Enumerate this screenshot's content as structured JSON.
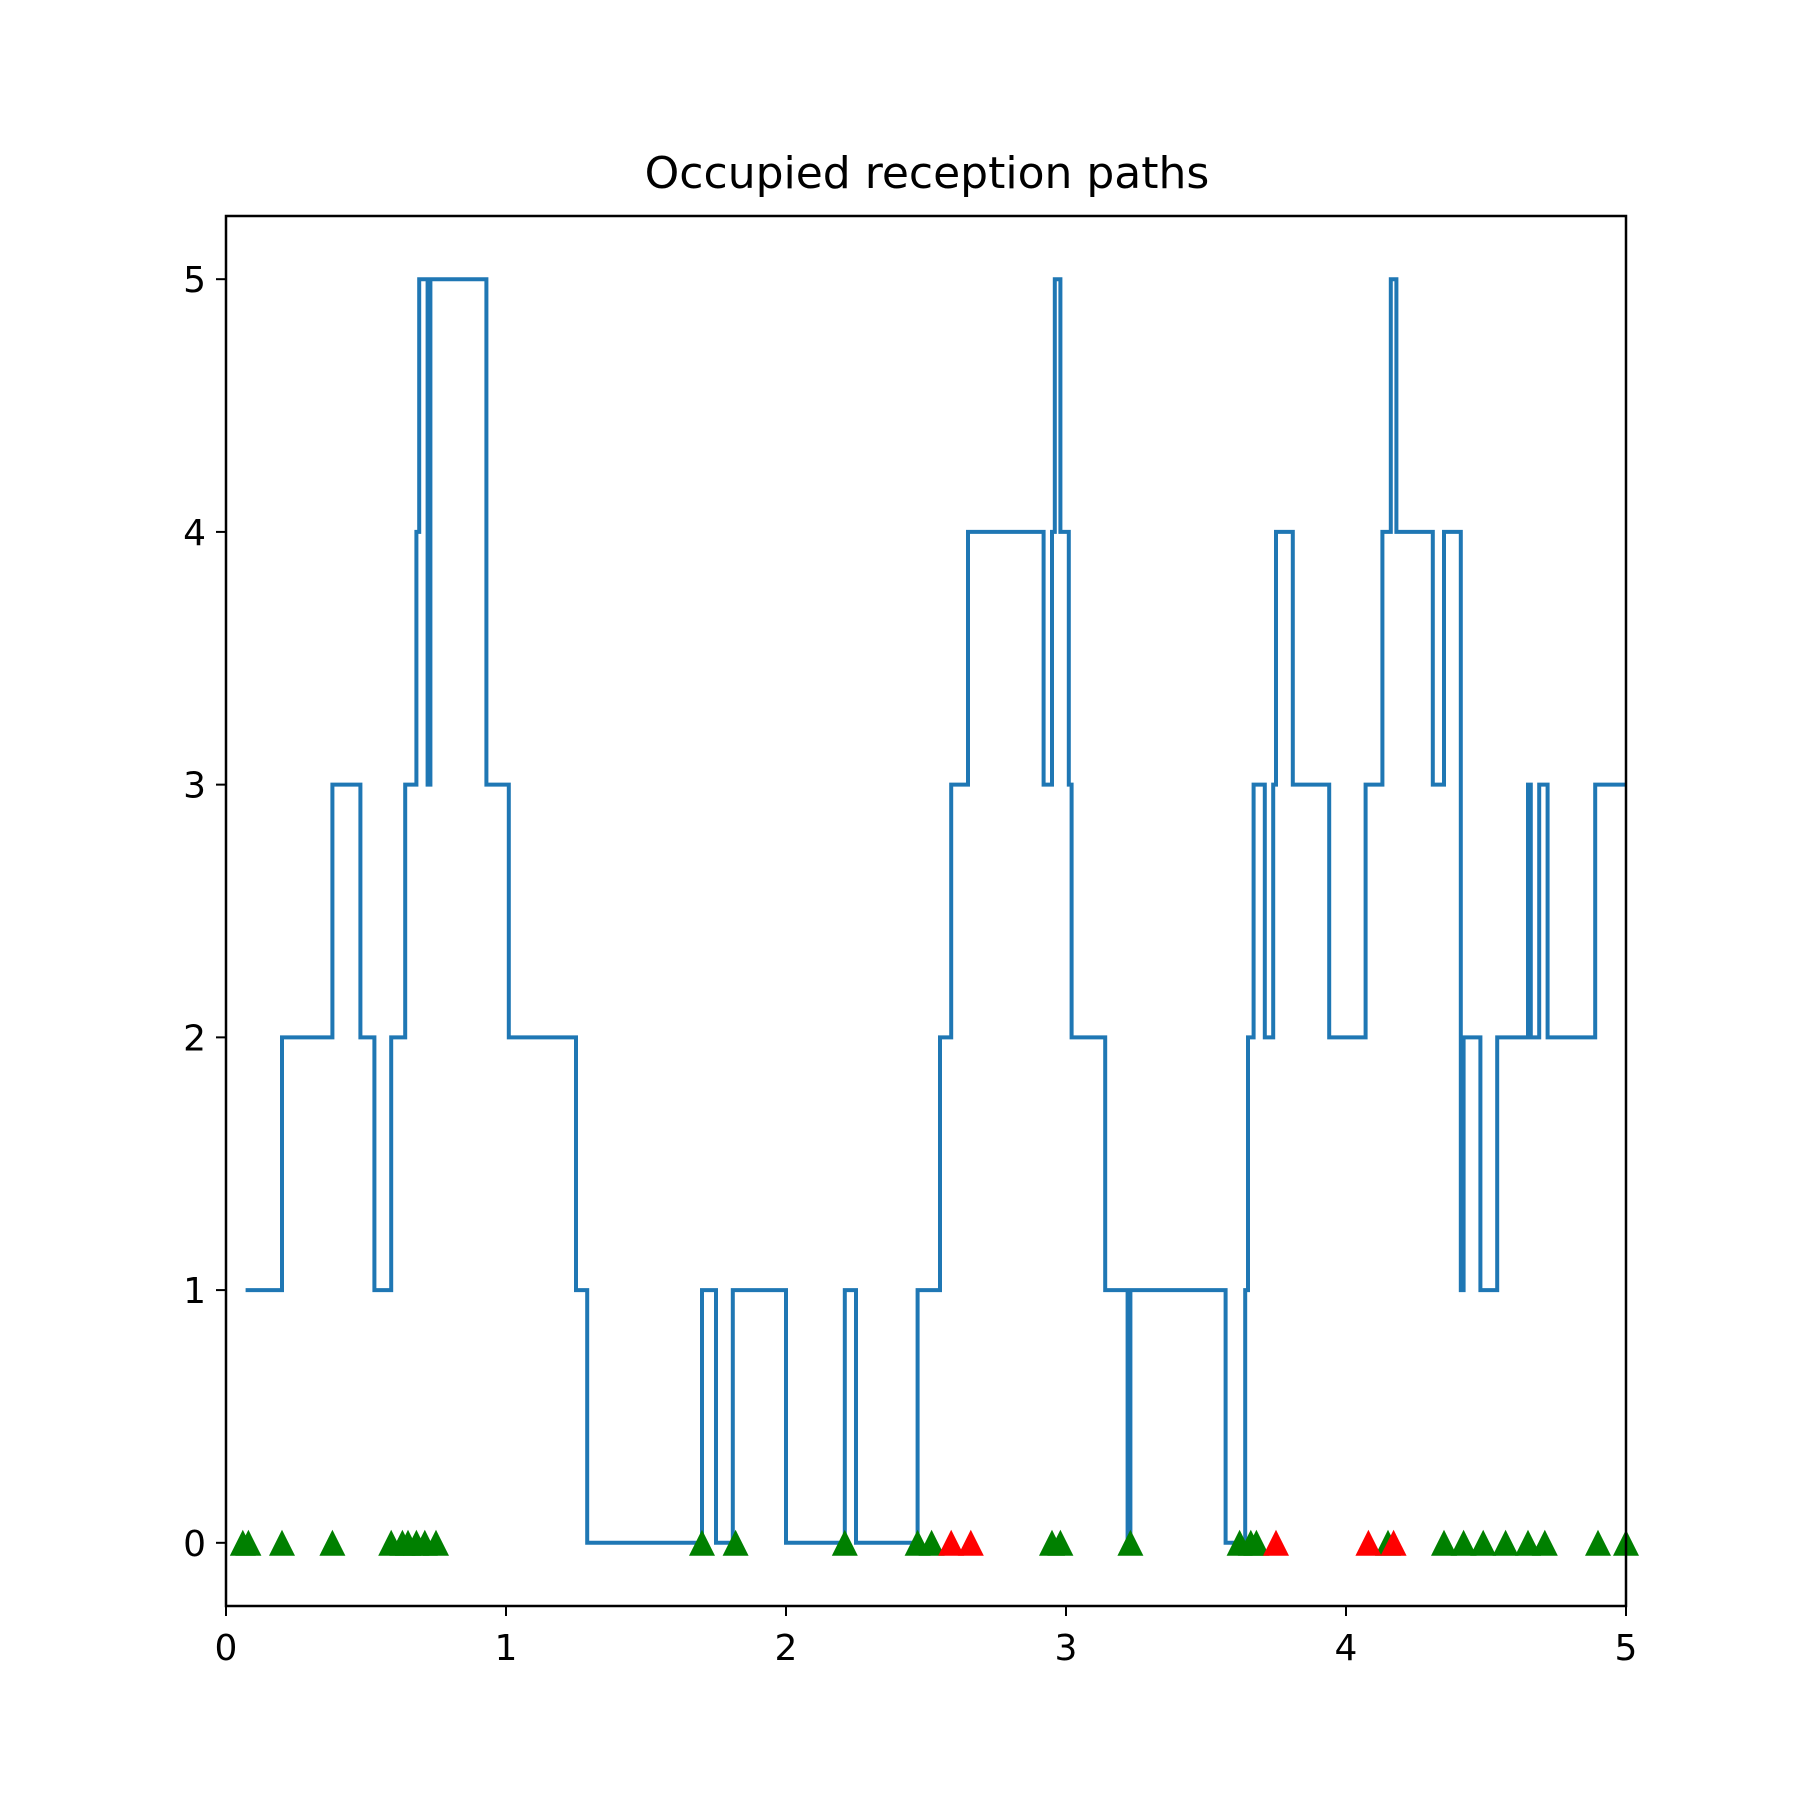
{
  "chart_data": {
    "type": "line",
    "title": "Occupied reception paths",
    "xlabel": "",
    "ylabel": "",
    "xlim": [
      0,
      5
    ],
    "ylim": [
      -0.25,
      5.25
    ],
    "grid": false,
    "x_ticks": [
      "0",
      "1",
      "2",
      "3",
      "4",
      "5"
    ],
    "y_ticks": [
      "0",
      "1",
      "2",
      "3",
      "4",
      "5"
    ],
    "colors": {
      "line": "#1f77b4",
      "accepted_marker": "#008000",
      "rejected_marker": "#ff0000"
    },
    "series": [
      {
        "style": "step",
        "x": [
          0.07,
          0.2,
          0.21,
          0.38,
          0.39,
          0.48,
          0.49,
          0.53,
          0.54,
          0.59,
          0.6,
          0.64,
          0.65,
          0.68,
          0.69,
          0.7,
          0.72,
          0.73,
          0.74,
          0.75,
          0.93,
          0.94,
          1.01,
          1.02,
          1.25,
          1.26,
          1.29,
          1.3,
          1.7,
          1.71,
          1.75,
          1.76,
          1.81,
          1.82,
          2.0,
          2.01,
          2.21,
          2.22,
          2.25,
          2.26,
          2.47,
          2.48,
          2.55,
          2.56,
          2.59,
          2.6,
          2.65,
          2.66,
          2.92,
          2.93,
          2.95,
          2.96,
          2.98,
          2.99,
          3.01,
          3.02,
          3.13,
          3.14,
          3.22,
          3.23,
          3.56,
          3.57,
          3.63,
          3.64,
          3.65,
          3.66,
          3.67,
          3.71,
          3.72,
          3.74,
          3.75,
          3.76,
          3.81,
          3.82,
          3.94,
          3.95,
          4.07,
          4.08,
          4.13,
          4.14,
          4.16,
          4.17,
          4.18,
          4.19,
          4.31,
          4.32,
          4.35,
          4.36,
          4.41,
          4.42,
          4.43,
          4.48,
          4.49,
          4.53,
          4.54,
          4.63,
          4.64,
          4.65,
          4.66,
          4.67,
          4.69,
          4.72,
          4.89,
          4.9,
          5.0
        ],
        "y": [
          1,
          2,
          2,
          3,
          3,
          2,
          2,
          1,
          1,
          2,
          2,
          3,
          3,
          4,
          5,
          5,
          3,
          5,
          5,
          5,
          3,
          3,
          2,
          2,
          1,
          1,
          0,
          0,
          1,
          1,
          0,
          0,
          1,
          1,
          0,
          0,
          1,
          1,
          0,
          0,
          1,
          1,
          2,
          2,
          3,
          3,
          4,
          4,
          3,
          3,
          4,
          5,
          4,
          4,
          3,
          2,
          2,
          1,
          0,
          1,
          1,
          0,
          0,
          1,
          2,
          2,
          3,
          2,
          2,
          3,
          4,
          4,
          3,
          3,
          2,
          2,
          3,
          3,
          4,
          4,
          5,
          5,
          4,
          4,
          3,
          3,
          4,
          4,
          1,
          2,
          2,
          1,
          1,
          1,
          2,
          2,
          2,
          3,
          2,
          2,
          3,
          2,
          3,
          3,
          3
        ]
      },
      {
        "style": "markers",
        "color": "green",
        "x": [
          0.06,
          0.08,
          0.2,
          0.38,
          0.59,
          0.63,
          0.65,
          0.68,
          0.71,
          0.75,
          1.7,
          1.82,
          2.21,
          2.47,
          2.52,
          2.95,
          2.98,
          3.23,
          3.62,
          3.66,
          3.68,
          4.15,
          4.35,
          4.42,
          4.49,
          4.57,
          4.65,
          4.71,
          4.9,
          5.0
        ],
        "y": [
          0,
          0,
          0,
          0,
          0,
          0,
          0,
          0,
          0,
          0,
          0,
          0,
          0,
          0,
          0,
          0,
          0,
          0,
          0,
          0,
          0,
          0,
          0,
          0,
          0,
          0,
          0,
          0,
          0,
          0
        ]
      },
      {
        "style": "markers",
        "color": "red",
        "x": [
          2.59,
          2.66,
          3.75,
          4.08,
          4.17
        ],
        "y": [
          0,
          0,
          0,
          0,
          0
        ]
      }
    ]
  }
}
